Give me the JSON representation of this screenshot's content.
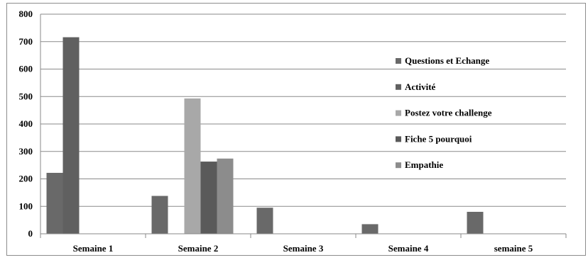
{
  "chart_data": {
    "type": "bar",
    "categories": [
      "Semaine 1",
      "Semaine 2",
      "Semaine 3",
      "Semaine 4",
      "semaine 5"
    ],
    "series": [
      {
        "name": "Questions et Echange",
        "values": [
          222,
          138,
          95,
          35,
          80
        ],
        "color": "#696969"
      },
      {
        "name": "Activité",
        "values": [
          716,
          0,
          0,
          0,
          0
        ],
        "color": "#606060"
      },
      {
        "name": "Postez votre challenge",
        "values": [
          0,
          493,
          0,
          0,
          0
        ],
        "color": "#a8a8a8"
      },
      {
        "name": "Fiche 5 pourquoi",
        "values": [
          0,
          263,
          0,
          0,
          0
        ],
        "color": "#5a5a5a"
      },
      {
        "name": "Empathie",
        "values": [
          0,
          274,
          0,
          0,
          0
        ],
        "color": "#8c8c8c"
      }
    ],
    "ylim": [
      0,
      800
    ],
    "yticks": [
      0,
      100,
      200,
      300,
      400,
      500,
      600,
      700,
      800
    ],
    "grid": true,
    "legend": "right"
  }
}
